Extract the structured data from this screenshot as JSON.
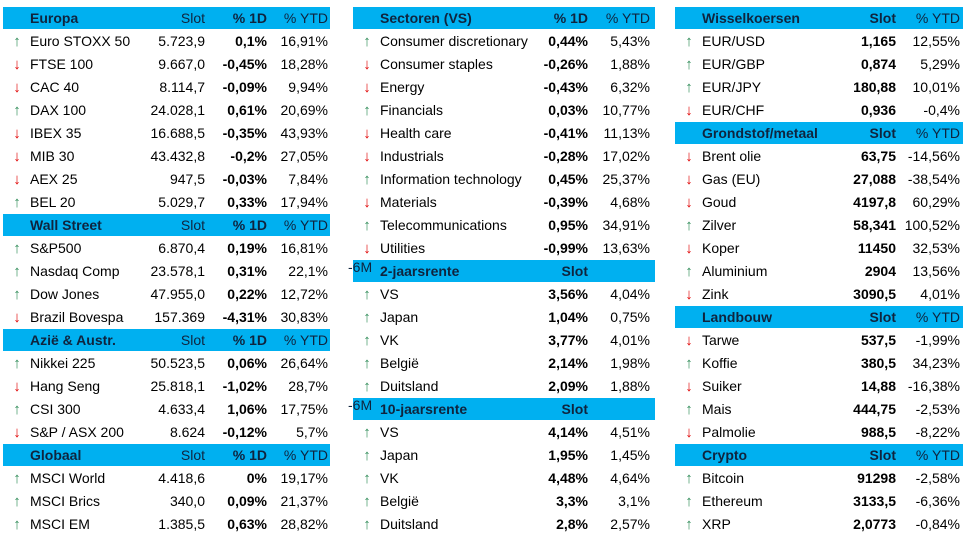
{
  "colors": {
    "header_bg": "#00B0F0",
    "header_text": "#0F243E",
    "up": "#2E8B57",
    "down": "#E00000"
  },
  "icons": {
    "up": "arrow-up-icon",
    "down": "arrow-down-icon"
  },
  "panels": [
    {
      "sections": [
        {
          "title": "Europa",
          "cols": [
            "Slot",
            "% 1D",
            "% YTD"
          ],
          "rows": [
            {
              "dir": "up",
              "name": "Euro STOXX 50",
              "slot": "5.723,9",
              "d1": "0,1%",
              "ytd": "16,91%"
            },
            {
              "dir": "down",
              "name": "FTSE 100",
              "slot": "9.667,0",
              "d1": "-0,45%",
              "ytd": "18,28%"
            },
            {
              "dir": "down",
              "name": "CAC 40",
              "slot": "8.114,7",
              "d1": "-0,09%",
              "ytd": "9,94%"
            },
            {
              "dir": "up",
              "name": "DAX 100",
              "slot": "24.028,1",
              "d1": "0,61%",
              "ytd": "20,69%"
            },
            {
              "dir": "down",
              "name": "IBEX 35",
              "slot": "16.688,5",
              "d1": "-0,35%",
              "ytd": "43,93%"
            },
            {
              "dir": "down",
              "name": "MIB 30",
              "slot": "43.432,8",
              "d1": "-0,2%",
              "ytd": "27,05%"
            },
            {
              "dir": "down",
              "name": "AEX 25",
              "slot": "947,5",
              "d1": "-0,03%",
              "ytd": "7,84%"
            },
            {
              "dir": "up",
              "name": "BEL 20",
              "slot": "5.029,7",
              "d1": "0,33%",
              "ytd": "17,94%"
            }
          ]
        },
        {
          "title": "Wall Street",
          "cols": [
            "Slot",
            "% 1D",
            "% YTD"
          ],
          "rows": [
            {
              "dir": "up",
              "name": "S&P500",
              "slot": "6.870,4",
              "d1": "0,19%",
              "ytd": "16,81%"
            },
            {
              "dir": "up",
              "name": "Nasdaq Comp",
              "slot": "23.578,1",
              "d1": "0,31%",
              "ytd": "22,1%"
            },
            {
              "dir": "up",
              "name": "Dow Jones",
              "slot": "47.955,0",
              "d1": "0,22%",
              "ytd": "12,72%"
            },
            {
              "dir": "down",
              "name": "Brazil Bovespa",
              "slot": "157.369",
              "d1": "-4,31%",
              "ytd": "30,83%"
            }
          ]
        },
        {
          "title": "Azië & Austr.",
          "cols": [
            "Slot",
            "% 1D",
            "% YTD"
          ],
          "rows": [
            {
              "dir": "up",
              "name": "Nikkei 225",
              "slot": "50.523,5",
              "d1": "0,06%",
              "ytd": "26,64%"
            },
            {
              "dir": "down",
              "name": "Hang Seng",
              "slot": "25.818,1",
              "d1": "-1,02%",
              "ytd": "28,7%"
            },
            {
              "dir": "up",
              "name": "CSI 300",
              "slot": "4.633,4",
              "d1": "1,06%",
              "ytd": "17,75%"
            },
            {
              "dir": "down",
              "name": "S&P / ASX 200",
              "slot": "8.624",
              "d1": "-0,12%",
              "ytd": "5,7%"
            }
          ]
        },
        {
          "title": "Globaal",
          "cols": [
            "Slot",
            "% 1D",
            "% YTD"
          ],
          "rows": [
            {
              "dir": "up",
              "name": "MSCI World",
              "slot": "4.418,6",
              "d1": "0%",
              "ytd": "19,17%"
            },
            {
              "dir": "up",
              "name": "MSCI Brics",
              "slot": "340,0",
              "d1": "0,09%",
              "ytd": "21,37%"
            },
            {
              "dir": "up",
              "name": "MSCI EM",
              "slot": "1.385,5",
              "d1": "0,63%",
              "ytd": "28,82%"
            }
          ]
        }
      ]
    },
    {
      "sections": [
        {
          "title": "Sectoren (VS)",
          "cols": [
            "",
            "% 1D",
            "% YTD"
          ],
          "rows": [
            {
              "dir": "up",
              "name": "Consumer discretionary",
              "d1": "0,44%",
              "ytd": "5,43%"
            },
            {
              "dir": "down",
              "name": "Consumer staples",
              "d1": "-0,26%",
              "ytd": "1,88%"
            },
            {
              "dir": "down",
              "name": "Energy",
              "d1": "-0,43%",
              "ytd": "6,32%"
            },
            {
              "dir": "up",
              "name": "Financials",
              "d1": "0,03%",
              "ytd": "10,77%"
            },
            {
              "dir": "down",
              "name": "Health care",
              "d1": "-0,41%",
              "ytd": "11,13%"
            },
            {
              "dir": "down",
              "name": "Industrials",
              "d1": "-0,28%",
              "ytd": "17,02%"
            },
            {
              "dir": "up",
              "name": "Information technology",
              "d1": "0,45%",
              "ytd": "25,37%"
            },
            {
              "dir": "down",
              "name": "Materials",
              "d1": "-0,39%",
              "ytd": "4,68%"
            },
            {
              "dir": "up",
              "name": "Telecommunications",
              "d1": "0,95%",
              "ytd": "34,91%"
            },
            {
              "dir": "down",
              "name": "Utilities",
              "d1": "-0,99%",
              "ytd": "13,63%"
            }
          ]
        },
        {
          "title": "2-jaarsrente",
          "cols": [
            "",
            "Slot",
            "-6M"
          ],
          "rows": [
            {
              "dir": "up",
              "name": "VS",
              "d1": "3,56%",
              "ytd": "4,04%"
            },
            {
              "dir": "up",
              "name": "Japan",
              "d1": "1,04%",
              "ytd": "0,75%"
            },
            {
              "dir": "up",
              "name": "VK",
              "d1": "3,77%",
              "ytd": "4,01%"
            },
            {
              "dir": "up",
              "name": "België",
              "d1": "2,14%",
              "ytd": "1,98%"
            },
            {
              "dir": "up",
              "name": "Duitsland",
              "d1": "2,09%",
              "ytd": "1,88%"
            }
          ]
        },
        {
          "title": "10-jaarsrente",
          "cols": [
            "",
            "Slot",
            "-6M"
          ],
          "rows": [
            {
              "dir": "up",
              "name": "VS",
              "d1": "4,14%",
              "ytd": "4,51%"
            },
            {
              "dir": "up",
              "name": "Japan",
              "d1": "1,95%",
              "ytd": "1,45%"
            },
            {
              "dir": "up",
              "name": "VK",
              "d1": "4,48%",
              "ytd": "4,64%"
            },
            {
              "dir": "up",
              "name": "België",
              "d1": "3,3%",
              "ytd": "3,1%"
            },
            {
              "dir": "up",
              "name": "Duitsland",
              "d1": "2,8%",
              "ytd": "2,57%"
            }
          ]
        }
      ]
    },
    {
      "sections": [
        {
          "title": "Wisselkoersen",
          "cols": [
            "",
            "Slot",
            "% YTD"
          ],
          "rows": [
            {
              "dir": "up",
              "name": "EUR/USD",
              "d1": "1,165",
              "ytd": "12,55%"
            },
            {
              "dir": "up",
              "name": "EUR/GBP",
              "d1": "0,874",
              "ytd": "5,29%"
            },
            {
              "dir": "up",
              "name": "EUR/JPY",
              "d1": "180,88",
              "ytd": "10,01%"
            },
            {
              "dir": "down",
              "name": "EUR/CHF",
              "d1": "0,936",
              "ytd": "-0,4%"
            }
          ]
        },
        {
          "title": "Grondstof/metaal",
          "cols": [
            "",
            "Slot",
            "% YTD"
          ],
          "rows": [
            {
              "dir": "down",
              "name": "Brent olie",
              "d1": "63,75",
              "ytd": "-14,56%"
            },
            {
              "dir": "down",
              "name": "Gas (EU)",
              "d1": "27,088",
              "ytd": "-38,54%"
            },
            {
              "dir": "down",
              "name": "Goud",
              "d1": "4197,8",
              "ytd": "60,29%"
            },
            {
              "dir": "up",
              "name": "Zilver",
              "d1": "58,341",
              "ytd": "100,52%"
            },
            {
              "dir": "down",
              "name": "Koper",
              "d1": "11450",
              "ytd": "32,53%"
            },
            {
              "dir": "up",
              "name": "Aluminium",
              "d1": "2904",
              "ytd": "13,56%"
            },
            {
              "dir": "down",
              "name": "Zink",
              "d1": "3090,5",
              "ytd": "4,01%"
            }
          ]
        },
        {
          "title": "Landbouw",
          "cols": [
            "",
            "Slot",
            "% YTD"
          ],
          "rows": [
            {
              "dir": "down",
              "name": "Tarwe",
              "d1": "537,5",
              "ytd": "-1,99%"
            },
            {
              "dir": "up",
              "name": "Koffie",
              "d1": "380,5",
              "ytd": "34,23%"
            },
            {
              "dir": "down",
              "name": "Suiker",
              "d1": "14,88",
              "ytd": "-16,38%"
            },
            {
              "dir": "up",
              "name": "Mais",
              "d1": "444,75",
              "ytd": "-2,53%"
            },
            {
              "dir": "down",
              "name": "Palmolie",
              "d1": "988,5",
              "ytd": "-8,22%"
            }
          ]
        },
        {
          "title": "Crypto",
          "cols": [
            "",
            "Slot",
            "% YTD"
          ],
          "rows": [
            {
              "dir": "up",
              "name": "Bitcoin",
              "d1": "91298",
              "ytd": "-2,58%"
            },
            {
              "dir": "up",
              "name": "Ethereum",
              "d1": "3133,5",
              "ytd": "-6,36%"
            },
            {
              "dir": "up",
              "name": "XRP",
              "d1": "2,0773",
              "ytd": "-0,84%"
            }
          ]
        }
      ]
    }
  ]
}
